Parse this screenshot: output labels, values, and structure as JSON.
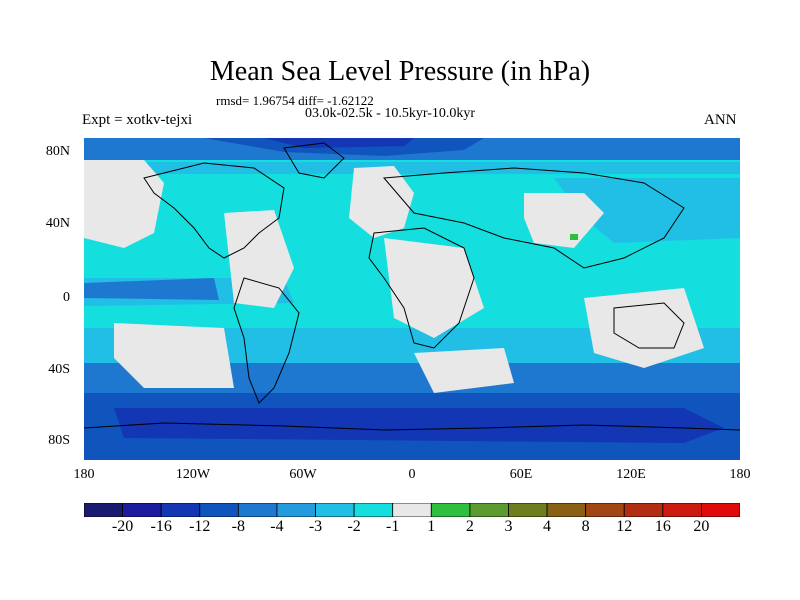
{
  "title": "Mean Sea Level Pressure (in hPa)",
  "stats": "rmsd= 1.96754 diff= -1.62122",
  "period": "03.0k-02.5k - 10.5kyr-10.0kyr",
  "experiment": "Expt = xotkv-tejxi",
  "season": "ANN",
  "map": {
    "x_ticks": [
      "180",
      "120W",
      "60W",
      "0",
      "60E",
      "120E",
      "180"
    ],
    "y_ticks": [
      "80N",
      "40N",
      "0",
      "40S",
      "80S"
    ],
    "y_tick_values": [
      80,
      40,
      0,
      -40,
      -80
    ],
    "x_tick_values": [
      -180,
      -120,
      -60,
      0,
      60,
      120,
      180
    ]
  },
  "colorbar": {
    "labels": [
      "-20",
      "-16",
      "-12",
      "-8",
      "-4",
      "-3",
      "-2",
      "-1",
      "1",
      "2",
      "3",
      "4",
      "8",
      "12",
      "16",
      "20"
    ],
    "colors": [
      "#1a1a6e",
      "#1c1ca0",
      "#1236b4",
      "#0f55bd",
      "#1f78cf",
      "#239cde",
      "#21bfe6",
      "#14dede",
      "#e8e8e8",
      "#2fbf3f",
      "#5a9a2e",
      "#6f7d1e",
      "#8a5f16",
      "#a14614",
      "#b32d12",
      "#cc1a0e",
      "#e00a0a"
    ]
  },
  "palette": {
    "land_neutral": "#e8e8e8",
    "ocean_light": "#14dede",
    "ocean_mid": "#21bfe6",
    "ocean_deep": "#1f78cf",
    "polar_deep": "#0f55bd",
    "polar_darker": "#1236b4",
    "anomaly_green": "#2fbf3f"
  }
}
